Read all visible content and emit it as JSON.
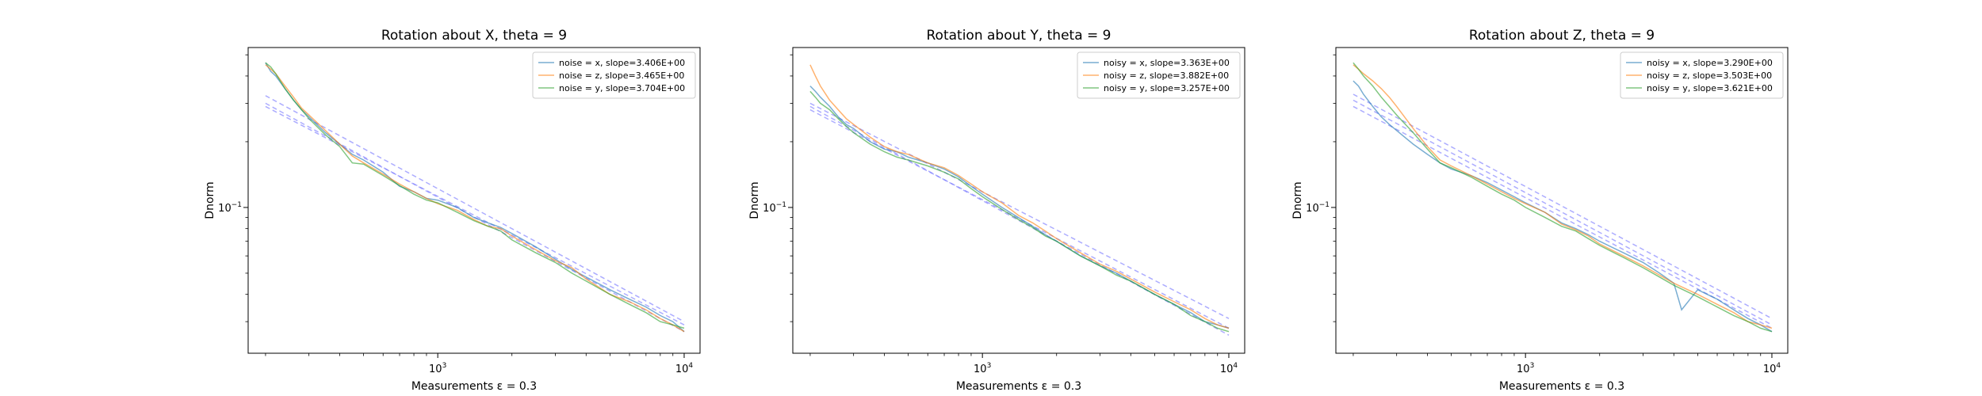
{
  "colors": {
    "blue": "#1f77b4",
    "orange": "#ff7f0e",
    "green": "#2ca02c",
    "fit": "#7f7fff"
  },
  "chart_data": [
    {
      "type": "line",
      "title": "Rotation about X, theta = 9",
      "xlabel": "Measurements ε = 0.3",
      "ylabel": "Dnorm",
      "xscale": "log",
      "yscale": "log",
      "xlim": [
        170,
        11600
      ],
      "ylim": [
        0.0215,
        0.54
      ],
      "xticks": [
        {
          "value": 1000,
          "label": "10^3"
        },
        {
          "value": 10000,
          "label": "10^4"
        }
      ],
      "yticks": [
        {
          "value": 0.1,
          "label": "10^-1"
        }
      ],
      "legend_position": "upper right",
      "series": [
        {
          "name": "noise = x, slope=3.406E+00",
          "color": "blue",
          "x": [
            200,
            210,
            220,
            240,
            260,
            280,
            300,
            350,
            400,
            450,
            500,
            600,
            700,
            800,
            900,
            1000,
            1200,
            1400,
            1600,
            1800,
            2000,
            2500,
            3000,
            3500,
            4000,
            5000,
            6000,
            7000,
            8000,
            9000,
            10000
          ],
          "y": [
            0.46,
            0.42,
            0.4,
            0.35,
            0.31,
            0.28,
            0.26,
            0.22,
            0.195,
            0.175,
            0.165,
            0.145,
            0.125,
            0.118,
            0.11,
            0.108,
            0.1,
            0.09,
            0.085,
            0.081,
            0.076,
            0.066,
            0.058,
            0.052,
            0.048,
            0.042,
            0.038,
            0.035,
            0.032,
            0.03,
            0.027
          ]
        },
        {
          "name": "noise = z, slope=3.465E+00",
          "color": "orange",
          "x": [
            200,
            210,
            220,
            240,
            260,
            280,
            300,
            350,
            400,
            450,
            500,
            600,
            700,
            800,
            900,
            1000,
            1200,
            1400,
            1600,
            1800,
            2000,
            2500,
            3000,
            3500,
            4000,
            5000,
            6000,
            7000,
            8000,
            9000,
            10000
          ],
          "y": [
            0.45,
            0.43,
            0.41,
            0.36,
            0.32,
            0.285,
            0.265,
            0.225,
            0.195,
            0.172,
            0.16,
            0.142,
            0.128,
            0.118,
            0.11,
            0.104,
            0.097,
            0.088,
            0.082,
            0.08,
            0.074,
            0.064,
            0.057,
            0.053,
            0.047,
            0.04,
            0.037,
            0.034,
            0.031,
            0.029,
            0.027
          ]
        },
        {
          "name": "noise = y, slope=3.704E+00",
          "color": "green",
          "x": [
            200,
            210,
            220,
            240,
            260,
            280,
            300,
            350,
            400,
            450,
            500,
            600,
            700,
            800,
            900,
            1000,
            1200,
            1400,
            1600,
            1800,
            2000,
            2500,
            3000,
            3500,
            4000,
            5000,
            6000,
            7000,
            8000,
            9000,
            10000
          ],
          "y": [
            0.46,
            0.44,
            0.41,
            0.35,
            0.31,
            0.28,
            0.255,
            0.215,
            0.19,
            0.16,
            0.158,
            0.14,
            0.126,
            0.115,
            0.108,
            0.105,
            0.095,
            0.087,
            0.082,
            0.078,
            0.071,
            0.062,
            0.056,
            0.05,
            0.046,
            0.04,
            0.036,
            0.033,
            0.03,
            0.029,
            0.028
          ]
        }
      ],
      "fit_lines": [
        {
          "color": "fit",
          "x": [
            200,
            10000
          ],
          "y": [
            0.325,
            0.03
          ]
        },
        {
          "color": "fit",
          "x": [
            200,
            10000
          ],
          "y": [
            0.3,
            0.027
          ]
        },
        {
          "color": "fit",
          "x": [
            200,
            10000
          ],
          "y": [
            0.29,
            0.029
          ]
        }
      ]
    },
    {
      "type": "line",
      "title": "Rotation about Y, theta = 9",
      "xlabel": "Measurements ε = 0.3",
      "ylabel": "Dnorm",
      "xscale": "log",
      "yscale": "log",
      "xlim": [
        170,
        11600
      ],
      "ylim": [
        0.0215,
        0.54
      ],
      "xticks": [
        {
          "value": 1000,
          "label": "10^3"
        },
        {
          "value": 10000,
          "label": "10^4"
        }
      ],
      "yticks": [
        {
          "value": 0.1,
          "label": "10^-1"
        }
      ],
      "legend_position": "upper right",
      "series": [
        {
          "name": "noisy = x, slope=3.363E+00",
          "color": "blue",
          "x": [
            200,
            210,
            220,
            240,
            260,
            280,
            300,
            350,
            400,
            450,
            500,
            600,
            700,
            800,
            900,
            1000,
            1200,
            1400,
            1600,
            1800,
            2000,
            2500,
            3000,
            3500,
            4000,
            5000,
            6000,
            7000,
            8000,
            9000,
            10000
          ],
          "y": [
            0.36,
            0.34,
            0.32,
            0.29,
            0.26,
            0.24,
            0.23,
            0.2,
            0.185,
            0.18,
            0.17,
            0.16,
            0.15,
            0.138,
            0.125,
            0.115,
            0.1,
            0.09,
            0.082,
            0.075,
            0.07,
            0.06,
            0.054,
            0.05,
            0.046,
            0.04,
            0.036,
            0.033,
            0.03,
            0.029,
            0.028
          ]
        },
        {
          "name": "noisy = z, slope=3.882E+00",
          "color": "orange",
          "x": [
            200,
            210,
            220,
            240,
            260,
            280,
            300,
            350,
            400,
            450,
            500,
            600,
            700,
            800,
            900,
            1000,
            1200,
            1400,
            1600,
            1800,
            2000,
            2500,
            3000,
            3500,
            4000,
            5000,
            6000,
            7000,
            8000,
            9000,
            10000
          ],
          "y": [
            0.45,
            0.4,
            0.36,
            0.31,
            0.28,
            0.255,
            0.24,
            0.21,
            0.19,
            0.18,
            0.175,
            0.16,
            0.152,
            0.14,
            0.128,
            0.118,
            0.105,
            0.092,
            0.085,
            0.078,
            0.072,
            0.062,
            0.055,
            0.051,
            0.047,
            0.041,
            0.037,
            0.034,
            0.031,
            0.029,
            0.028
          ]
        },
        {
          "name": "noisy = y, slope=3.257E+00",
          "color": "green",
          "x": [
            200,
            210,
            220,
            240,
            260,
            280,
            300,
            350,
            400,
            450,
            500,
            600,
            700,
            800,
            900,
            1000,
            1200,
            1400,
            1600,
            1800,
            2000,
            2500,
            3000,
            3500,
            4000,
            5000,
            6000,
            7000,
            8000,
            9000,
            10000
          ],
          "y": [
            0.34,
            0.32,
            0.3,
            0.28,
            0.255,
            0.235,
            0.22,
            0.195,
            0.18,
            0.17,
            0.165,
            0.155,
            0.145,
            0.135,
            0.122,
            0.112,
            0.098,
            0.088,
            0.081,
            0.074,
            0.07,
            0.06,
            0.054,
            0.049,
            0.046,
            0.04,
            0.036,
            0.032,
            0.03,
            0.028,
            0.027
          ]
        }
      ],
      "fit_lines": [
        {
          "color": "fit",
          "x": [
            200,
            10000
          ],
          "y": [
            0.3,
            0.031
          ]
        },
        {
          "color": "fit",
          "x": [
            200,
            10000
          ],
          "y": [
            0.28,
            0.028
          ]
        },
        {
          "color": "fit",
          "x": [
            200,
            10000
          ],
          "y": [
            0.29,
            0.026
          ]
        }
      ]
    },
    {
      "type": "line",
      "title": "Rotation about Z, theta = 9",
      "xlabel": "Measurements ε = 0.3",
      "ylabel": "Dnorm",
      "xscale": "log",
      "yscale": "log",
      "xlim": [
        170,
        11600
      ],
      "ylim": [
        0.0215,
        0.54
      ],
      "xticks": [
        {
          "value": 1000,
          "label": "10^3"
        },
        {
          "value": 10000,
          "label": "10^4"
        }
      ],
      "yticks": [
        {
          "value": 0.1,
          "label": "10^-1"
        }
      ],
      "legend_position": "upper right",
      "series": [
        {
          "name": "noisy = x, slope=3.290E+00",
          "color": "blue",
          "x": [
            200,
            210,
            220,
            240,
            260,
            280,
            300,
            350,
            400,
            450,
            500,
            600,
            700,
            800,
            900,
            1000,
            1200,
            1400,
            1600,
            1800,
            2000,
            2500,
            3000,
            3500,
            4000,
            4300,
            5000,
            6000,
            7000,
            8000,
            9000,
            10000
          ],
          "y": [
            0.38,
            0.36,
            0.33,
            0.29,
            0.26,
            0.24,
            0.225,
            0.195,
            0.175,
            0.16,
            0.15,
            0.14,
            0.13,
            0.12,
            0.112,
            0.105,
            0.095,
            0.085,
            0.08,
            0.075,
            0.07,
            0.062,
            0.056,
            0.05,
            0.045,
            0.034,
            0.042,
            0.038,
            0.034,
            0.031,
            0.029,
            0.027
          ]
        },
        {
          "name": "noisy = z, slope=3.503E+00",
          "color": "orange",
          "x": [
            200,
            210,
            220,
            240,
            260,
            280,
            300,
            350,
            400,
            450,
            500,
            600,
            700,
            800,
            900,
            1000,
            1200,
            1400,
            1600,
            1800,
            2000,
            2500,
            3000,
            3500,
            4000,
            5000,
            6000,
            7000,
            8000,
            9000,
            10000
          ],
          "y": [
            0.45,
            0.43,
            0.41,
            0.38,
            0.35,
            0.32,
            0.29,
            0.23,
            0.19,
            0.165,
            0.155,
            0.14,
            0.128,
            0.118,
            0.11,
            0.104,
            0.095,
            0.084,
            0.079,
            0.074,
            0.068,
            0.06,
            0.054,
            0.049,
            0.045,
            0.04,
            0.036,
            0.033,
            0.03,
            0.029,
            0.028
          ]
        },
        {
          "name": "noisy = y, slope=3.621E+00",
          "color": "green",
          "x": [
            200,
            210,
            220,
            240,
            260,
            280,
            300,
            350,
            400,
            450,
            500,
            600,
            700,
            800,
            900,
            1000,
            1200,
            1400,
            1600,
            1800,
            2000,
            2500,
            3000,
            3500,
            4000,
            5000,
            6000,
            7000,
            8000,
            9000,
            10000
          ],
          "y": [
            0.46,
            0.43,
            0.4,
            0.36,
            0.32,
            0.29,
            0.265,
            0.22,
            0.185,
            0.16,
            0.152,
            0.138,
            0.125,
            0.115,
            0.108,
            0.1,
            0.09,
            0.082,
            0.078,
            0.072,
            0.067,
            0.059,
            0.053,
            0.048,
            0.044,
            0.039,
            0.035,
            0.032,
            0.03,
            0.028,
            0.027
          ]
        }
      ],
      "fit_lines": [
        {
          "color": "fit",
          "x": [
            200,
            10000
          ],
          "y": [
            0.33,
            0.031
          ]
        },
        {
          "color": "fit",
          "x": [
            200,
            10000
          ],
          "y": [
            0.31,
            0.029
          ]
        },
        {
          "color": "fit",
          "x": [
            200,
            10000
          ],
          "y": [
            0.29,
            0.028
          ]
        }
      ]
    }
  ]
}
